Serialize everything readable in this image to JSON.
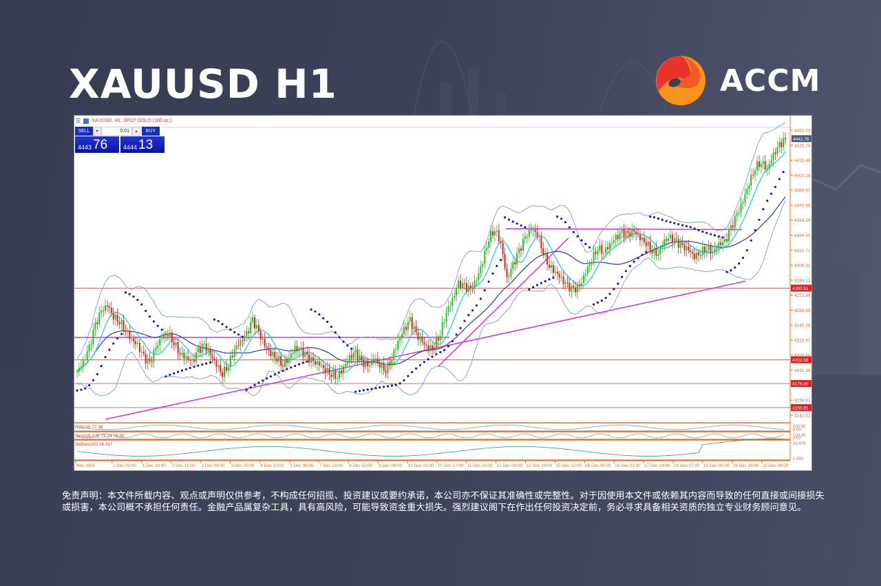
{
  "header": {
    "title": "XAUUSD H1",
    "brand": "ACCM"
  },
  "colors": {
    "bg": "#3d4259",
    "logo_red": "#e8332a",
    "logo_orange": "#f7941d",
    "bull": "#22c022",
    "bear": "#e02020",
    "sar": "#1a1aa8",
    "ma_fast": "#22d0e0",
    "ma_slow": "#3a4a9a",
    "bands": "#7a9fc0",
    "trend": "#e020d0",
    "level": "#c04040",
    "axis": "#e07030",
    "stddev": "#2a9a6a"
  },
  "chart_header": {
    "menu_icon": "menu-icon",
    "symbol_label": "XAUUSD, H1:  SPOT GOLD (100 oz.)"
  },
  "trade_panel": {
    "sell_label": "SELL",
    "buy_label": "BUY",
    "lot_value": "0.01",
    "sell_price_small": "4443",
    "sell_price_big": "76",
    "buy_price_small": "4444",
    "buy_price_big": "13"
  },
  "disclaimer": "免责声明：本文件所载内容、观点或声明仅供参考，不构成任何招揽、投资建议或要约承诺，本公司亦不保证其准确性或完整性。对于因使用本文件或依赖其内容而导致的任何直接或间接损失或损害，本公司概不承担任何责任。金融产品属复杂工具，具有高风险，可能导致资金重大损失。强烈建议阁下在作出任何投资决定前，务必寻求具备相关资质的独立专业财务顾问意见。",
  "chart_data": {
    "type": "candlestick",
    "title": "XAUUSD, H1: SPOT GOLD (100 oz.)",
    "ylim": [
      4135,
      4455
    ],
    "y_ticks": [
      "4452.03",
      "4435.74",
      "4419.45",
      "4403.16",
      "4386.87",
      "4370.58",
      "4354.29",
      "4338.00",
      "4321.71",
      "4305.42",
      "4289.13",
      "4272.84",
      "4256.55",
      "4240.26",
      "4223.97",
      "4207.68",
      "4191.39",
      "4158.81",
      "4142.52"
    ],
    "current_price": "4442.76",
    "horizontal_levels": [
      {
        "value": 4280.51,
        "label": "4280.51"
      },
      {
        "value": 4202.66,
        "label": "4202.66"
      },
      {
        "value": 4176.89,
        "label": "4176.89"
      },
      {
        "value": 4150.81,
        "label": "4150.81"
      }
    ],
    "x_ticks": [
      "Nov 2025",
      "1 Dec 02:00",
      "1 Dec 18:00",
      "2 Dec 11:00",
      "3 Dec 04:00",
      "3 Dec 20:00",
      "4 Dec 13:00",
      "5 Dec 06:00",
      "7 Dec 23:00",
      "8 Dec 15:00",
      "9 Dec 08:00",
      "10 Dec 01:00",
      "10 Dec 17:00",
      "11 Dec 10:00",
      "12 Dec 03:00",
      "12 Dec 19:00",
      "15 Dec 12:00",
      "16 Dec 05:00",
      "16 Dec 21:00",
      "17 Dec 14:00",
      "18 Dec 07:00",
      "19 Dec 00:00",
      "19 Dec 16:00",
      "22 Dec 09:00"
    ],
    "close_path": [
      4190,
      4200,
      4215,
      4240,
      4255,
      4262,
      4250,
      4245,
      4235,
      4225,
      4218,
      4205,
      4198,
      4215,
      4228,
      4232,
      4222,
      4210,
      4205,
      4200,
      4212,
      4218,
      4208,
      4198,
      4188,
      4198,
      4215,
      4222,
      4230,
      4245,
      4232,
      4218,
      4210,
      4205,
      4198,
      4205,
      4215,
      4212,
      4205,
      4200,
      4198,
      4192,
      4188,
      4185,
      4195,
      4205,
      4210,
      4200,
      4195,
      4205,
      4198,
      4192,
      4205,
      4222,
      4235,
      4245,
      4230,
      4222,
      4215,
      4218,
      4232,
      4255,
      4268,
      4285,
      4282,
      4278,
      4290,
      4310,
      4335,
      4345,
      4330,
      4290,
      4305,
      4320,
      4335,
      4345,
      4340,
      4320,
      4305,
      4298,
      4290,
      4282,
      4278,
      4282,
      4298,
      4312,
      4325,
      4320,
      4328,
      4335,
      4340,
      4338,
      4342,
      4335,
      4330,
      4322,
      4318,
      4332,
      4335,
      4330,
      4325,
      4322,
      4315,
      4320,
      4325,
      4320,
      4328,
      4330,
      4345,
      4360,
      4375,
      4395,
      4412,
      4418,
      4410,
      4425,
      4435,
      4442
    ],
    "indicator_panels": [
      {
        "name": "RSI(14)",
        "label": "RSI(14) 77.36",
        "ticks": [
          "100.00",
          "0.00"
        ]
      },
      {
        "name": "Stoch(5,3,3)",
        "label": "Stoch(5,3,3) 73.24 78.50",
        "ticks": [
          "100.00",
          "0.00"
        ]
      },
      {
        "name": "StdDev(20)",
        "label": "StdDev(20) 16.417",
        "ticks": [
          "32.475",
          "1.433"
        ]
      }
    ],
    "overlays": [
      "Bollinger Bands",
      "Moving Average (fast)",
      "Moving Average (slow)",
      "Parabolic SAR",
      "Trendlines"
    ]
  }
}
